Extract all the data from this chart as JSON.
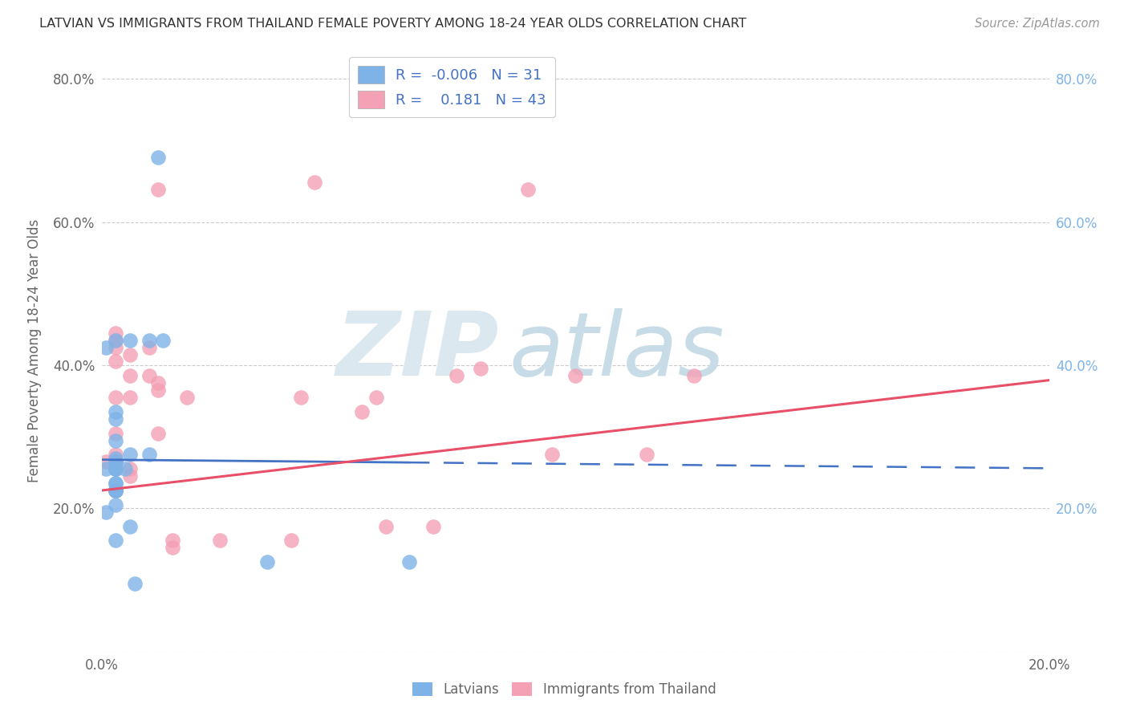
{
  "title": "LATVIAN VS IMMIGRANTS FROM THAILAND FEMALE POVERTY AMONG 18-24 YEAR OLDS CORRELATION CHART",
  "source": "Source: ZipAtlas.com",
  "ylabel": "Female Poverty Among 18-24 Year Olds",
  "background_color": "#ffffff",
  "watermark_zip": "ZIP",
  "watermark_atlas": "atlas",
  "latvian_color": "#7EB3E8",
  "thai_color": "#F4A0B5",
  "latvian_line_color": "#4472C4",
  "thai_line_color": "#E8506A",
  "R_latvian": -0.006,
  "N_latvian": 31,
  "R_thai": 0.181,
  "N_thai": 43,
  "xlim": [
    0.0,
    0.2
  ],
  "ylim": [
    0.0,
    0.84
  ],
  "yticks": [
    0.0,
    0.2,
    0.4,
    0.6,
    0.8
  ],
  "ytick_labels_left": [
    "",
    "20.0%",
    "40.0%",
    "60.0%",
    "80.0%"
  ],
  "ytick_labels_right": [
    "",
    "20.0%",
    "40.0%",
    "60.0%",
    "80.0%"
  ],
  "xticks": [
    0.0,
    0.04,
    0.08,
    0.12,
    0.16,
    0.2
  ],
  "xtick_labels": [
    "0.0%",
    "",
    "",
    "",
    "",
    "20.0%"
  ],
  "latvian_x": [
    0.003,
    0.012,
    0.003,
    0.001,
    0.003,
    0.005,
    0.003,
    0.003,
    0.003,
    0.003,
    0.001,
    0.003,
    0.003,
    0.006,
    0.003,
    0.006,
    0.003,
    0.001,
    0.003,
    0.003,
    0.003,
    0.006,
    0.007,
    0.003,
    0.003,
    0.01,
    0.013,
    0.01,
    0.003,
    0.035,
    0.065
  ],
  "latvian_y": [
    0.265,
    0.69,
    0.27,
    0.255,
    0.255,
    0.255,
    0.225,
    0.205,
    0.235,
    0.295,
    0.195,
    0.235,
    0.255,
    0.275,
    0.325,
    0.435,
    0.435,
    0.425,
    0.335,
    0.255,
    0.225,
    0.175,
    0.095,
    0.225,
    0.225,
    0.435,
    0.435,
    0.275,
    0.155,
    0.125,
    0.125
  ],
  "thai_x": [
    0.003,
    0.001,
    0.003,
    0.006,
    0.006,
    0.003,
    0.003,
    0.003,
    0.003,
    0.003,
    0.003,
    0.003,
    0.003,
    0.003,
    0.003,
    0.003,
    0.006,
    0.006,
    0.006,
    0.012,
    0.012,
    0.012,
    0.01,
    0.01,
    0.012,
    0.015,
    0.015,
    0.018,
    0.025,
    0.04,
    0.042,
    0.045,
    0.055,
    0.058,
    0.06,
    0.07,
    0.075,
    0.08,
    0.09,
    0.095,
    0.1,
    0.115,
    0.125
  ],
  "thai_y": [
    0.265,
    0.265,
    0.265,
    0.255,
    0.245,
    0.225,
    0.225,
    0.255,
    0.275,
    0.265,
    0.305,
    0.355,
    0.405,
    0.425,
    0.435,
    0.445,
    0.415,
    0.385,
    0.355,
    0.365,
    0.645,
    0.305,
    0.385,
    0.425,
    0.375,
    0.145,
    0.155,
    0.355,
    0.155,
    0.155,
    0.355,
    0.655,
    0.335,
    0.355,
    0.175,
    0.175,
    0.385,
    0.395,
    0.645,
    0.275,
    0.385,
    0.275,
    0.385
  ],
  "lv_line_x_solid_end": 0.065,
  "lv_line_intercept": 0.268,
  "lv_line_slope": -0.06,
  "th_line_intercept": 0.225,
  "th_line_slope": 0.77
}
